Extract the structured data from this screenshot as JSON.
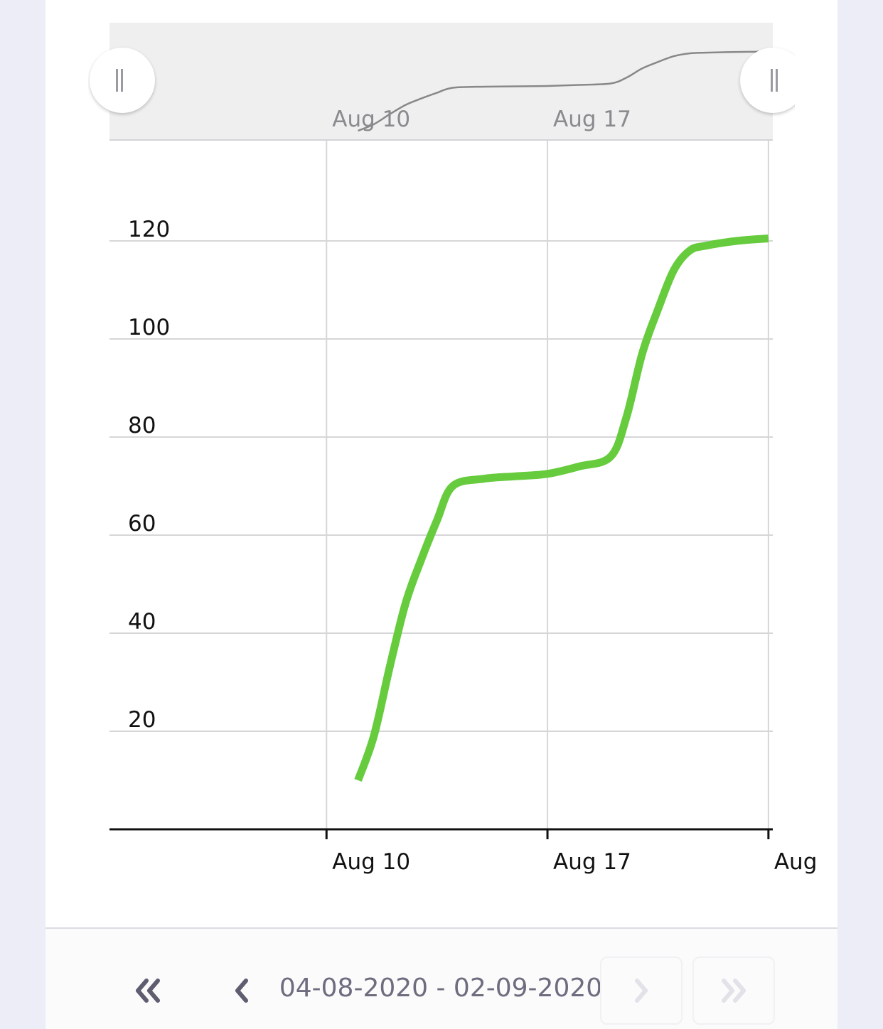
{
  "chart_data": {
    "type": "line",
    "y_ticks": [
      20,
      40,
      60,
      80,
      100,
      120
    ],
    "x_ticks": [
      "Aug 10",
      "Aug 17",
      "Aug"
    ],
    "ylim": [
      0,
      140
    ],
    "grid": true,
    "series": [
      {
        "color": "#66cc3d",
        "points": [
          {
            "x": "2020-08-11",
            "y": 10
          },
          {
            "x": "2020-08-11 12:00",
            "y": 19
          },
          {
            "x": "2020-08-12",
            "y": 33
          },
          {
            "x": "2020-08-12 12:00",
            "y": 46
          },
          {
            "x": "2020-08-13",
            "y": 55
          },
          {
            "x": "2020-08-13 12:00",
            "y": 63
          },
          {
            "x": "2020-08-14",
            "y": 70
          },
          {
            "x": "2020-08-15",
            "y": 71.5
          },
          {
            "x": "2020-08-16",
            "y": 72
          },
          {
            "x": "2020-08-17",
            "y": 72.5
          },
          {
            "x": "2020-08-18",
            "y": 74
          },
          {
            "x": "2020-08-19",
            "y": 76
          },
          {
            "x": "2020-08-19 12:00",
            "y": 84
          },
          {
            "x": "2020-08-20",
            "y": 97
          },
          {
            "x": "2020-08-20 12:00",
            "y": 106
          },
          {
            "x": "2020-08-21",
            "y": 114
          },
          {
            "x": "2020-08-21 12:00",
            "y": 118
          },
          {
            "x": "2020-08-22",
            "y": 119
          },
          {
            "x": "2020-08-23",
            "y": 120
          },
          {
            "x": "2020-08-24",
            "y": 120.5
          }
        ]
      }
    ]
  },
  "navigator": {
    "x_ticks": [
      "Aug 10",
      "Aug 17"
    ],
    "line_color": "#888888"
  },
  "pager": {
    "date_range": "04-08-2020 - 02-09-2020",
    "first_icon": "double-chevron-left-icon",
    "prev_icon": "chevron-left-icon",
    "next_icon": "chevron-right-icon",
    "last_icon": "double-chevron-right-icon",
    "active_color": "#5f5d70",
    "disabled_color": "#e2e2e8"
  }
}
